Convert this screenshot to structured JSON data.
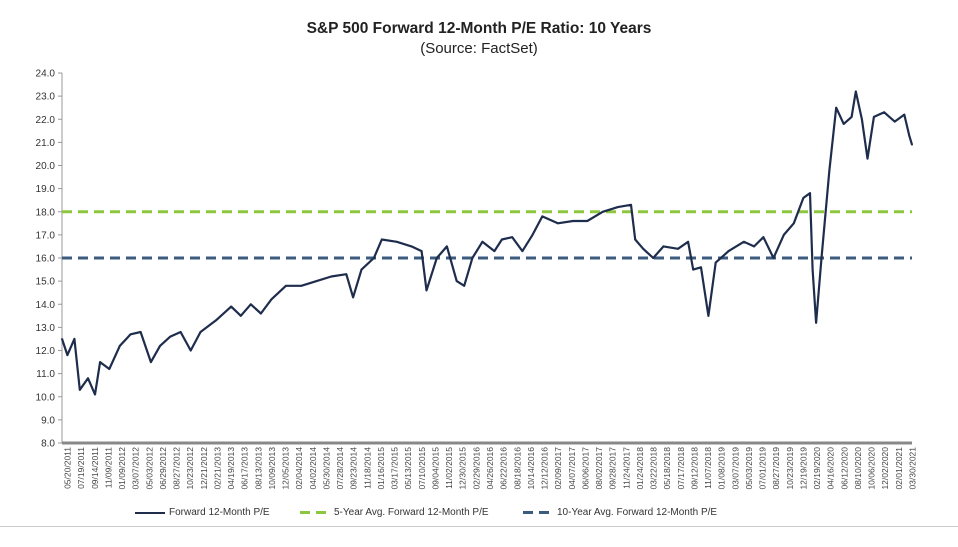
{
  "chart_data": {
    "type": "line",
    "title": "S&P 500 Forward 12-Month P/E Ratio: 10 Years",
    "subtitle": "(Source: FactSet)",
    "ylim": [
      8.0,
      24.0
    ],
    "yticks": [
      "8.0",
      "9.0",
      "10.0",
      "11.0",
      "12.0",
      "13.0",
      "14.0",
      "15.0",
      "16.0",
      "17.0",
      "18.0",
      "19.0",
      "20.0",
      "21.0",
      "22.0",
      "23.0",
      "24.0"
    ],
    "xlim": [
      "2011-05-20",
      "2021-04-30"
    ],
    "xtick_labels": [
      "05/20/2011",
      "07/19/2011",
      "09/14/2011",
      "11/09/2011",
      "01/09/2012",
      "03/07/2012",
      "05/03/2012",
      "06/29/2012",
      "08/27/2012",
      "10/23/2012",
      "12/21/2012",
      "02/21/2013",
      "04/19/2013",
      "06/17/2013",
      "08/13/2013",
      "10/09/2013",
      "12/05/2013",
      "02/04/2014",
      "04/02/2014",
      "05/30/2014",
      "07/28/2014",
      "09/23/2014",
      "11/18/2014",
      "01/16/2015",
      "03/17/2015",
      "05/13/2015",
      "07/10/2015",
      "09/04/2015",
      "11/02/2015",
      "12/30/2015",
      "02/29/2016",
      "04/26/2016",
      "06/22/2016",
      "08/18/2016",
      "10/14/2016",
      "12/12/2016",
      "02/09/2017",
      "04/07/2017",
      "06/06/2017",
      "08/02/2017",
      "09/28/2017",
      "11/24/2017",
      "01/24/2018",
      "03/22/2018",
      "05/18/2018",
      "07/17/2018",
      "09/12/2018",
      "11/07/2018",
      "01/08/2019",
      "03/07/2019",
      "05/03/2019",
      "07/01/2019",
      "08/27/2019",
      "10/23/2019",
      "12/19/2019",
      "02/19/2020",
      "04/16/2020",
      "06/12/2020",
      "08/10/2020",
      "10/06/2020",
      "12/02/2020",
      "02/01/2021",
      "03/30/2021"
    ],
    "grid": false,
    "legend_placement": "bottom",
    "series": [
      {
        "name": "Forward 12-Month P/E",
        "color": "#1f2d4d",
        "style": "solid",
        "points": [
          [
            "2011-05-20",
            12.5
          ],
          [
            "2011-06-12",
            11.8
          ],
          [
            "2011-07-12",
            12.5
          ],
          [
            "2011-08-04",
            10.3
          ],
          [
            "2011-09-08",
            10.8
          ],
          [
            "2011-10-08",
            10.1
          ],
          [
            "2011-10-30",
            11.5
          ],
          [
            "2011-12-08",
            11.2
          ],
          [
            "2012-01-22",
            12.2
          ],
          [
            "2012-03-08",
            12.7
          ],
          [
            "2012-04-20",
            12.8
          ],
          [
            "2012-06-03",
            11.5
          ],
          [
            "2012-07-12",
            12.2
          ],
          [
            "2012-08-25",
            12.6
          ],
          [
            "2012-10-08",
            12.8
          ],
          [
            "2012-11-20",
            12.0
          ],
          [
            "2013-01-01",
            12.8
          ],
          [
            "2013-03-08",
            13.3
          ],
          [
            "2013-05-12",
            13.9
          ],
          [
            "2013-06-22",
            13.5
          ],
          [
            "2013-08-04",
            14.0
          ],
          [
            "2013-09-16",
            13.6
          ],
          [
            "2013-10-30",
            14.2
          ],
          [
            "2014-01-01",
            14.8
          ],
          [
            "2014-03-08",
            14.8
          ],
          [
            "2014-05-12",
            15.0
          ],
          [
            "2014-07-14",
            15.2
          ],
          [
            "2014-09-16",
            15.3
          ],
          [
            "2014-10-15",
            14.3
          ],
          [
            "2014-11-20",
            15.5
          ],
          [
            "2015-01-12",
            16.0
          ],
          [
            "2015-02-15",
            16.8
          ],
          [
            "2015-04-20",
            16.7
          ],
          [
            "2015-06-22",
            16.5
          ],
          [
            "2015-08-04",
            16.3
          ],
          [
            "2015-08-25",
            14.6
          ],
          [
            "2015-10-08",
            16.0
          ],
          [
            "2015-11-20",
            16.5
          ],
          [
            "2016-01-01",
            15.0
          ],
          [
            "2016-02-02",
            14.8
          ],
          [
            "2016-03-08",
            16.0
          ],
          [
            "2016-04-20",
            16.7
          ],
          [
            "2016-06-10",
            16.3
          ],
          [
            "2016-07-12",
            16.8
          ],
          [
            "2016-08-25",
            16.9
          ],
          [
            "2016-10-08",
            16.3
          ],
          [
            "2016-11-20",
            17.0
          ],
          [
            "2017-01-01",
            17.8
          ],
          [
            "2017-03-08",
            17.5
          ],
          [
            "2017-05-12",
            17.6
          ],
          [
            "2017-07-12",
            17.6
          ],
          [
            "2017-09-16",
            18.0
          ],
          [
            "2017-11-20",
            18.2
          ],
          [
            "2018-01-15",
            18.3
          ],
          [
            "2018-02-02",
            16.8
          ],
          [
            "2018-03-08",
            16.4
          ],
          [
            "2018-04-20",
            16.0
          ],
          [
            "2018-06-03",
            16.5
          ],
          [
            "2018-08-04",
            16.4
          ],
          [
            "2018-09-16",
            16.7
          ],
          [
            "2018-10-08",
            15.5
          ],
          [
            "2018-11-10",
            15.6
          ],
          [
            "2018-12-12",
            13.5
          ],
          [
            "2019-01-12",
            15.8
          ],
          [
            "2019-03-08",
            16.3
          ],
          [
            "2019-05-12",
            16.7
          ],
          [
            "2019-06-25",
            16.5
          ],
          [
            "2019-08-04",
            16.9
          ],
          [
            "2019-09-16",
            16.0
          ],
          [
            "2019-10-30",
            17.0
          ],
          [
            "2019-12-12",
            17.5
          ],
          [
            "2020-01-22",
            18.6
          ],
          [
            "2020-02-19",
            18.8
          ],
          [
            "2020-03-01",
            15.5
          ],
          [
            "2020-03-16",
            13.2
          ],
          [
            "2020-04-08",
            16.0
          ],
          [
            "2020-05-12",
            19.8
          ],
          [
            "2020-06-10",
            22.5
          ],
          [
            "2020-07-12",
            21.8
          ],
          [
            "2020-08-15",
            22.1
          ],
          [
            "2020-09-02",
            23.2
          ],
          [
            "2020-09-28",
            22.0
          ],
          [
            "2020-10-22",
            20.3
          ],
          [
            "2020-11-18",
            22.1
          ],
          [
            "2021-01-01",
            22.3
          ],
          [
            "2021-02-15",
            21.9
          ],
          [
            "2021-03-28",
            22.2
          ],
          [
            "2021-04-18",
            21.3
          ],
          [
            "2021-04-30",
            20.9
          ]
        ]
      },
      {
        "name": "5-Year Avg. Forward 12-Month P/E",
        "color": "#8dc63f",
        "style": "dashed",
        "value": 18.0
      },
      {
        "name": "10-Year Avg. Forward 12-Month P/E",
        "color": "#3b5b7f",
        "style": "dashed",
        "value": 16.0
      }
    ]
  }
}
